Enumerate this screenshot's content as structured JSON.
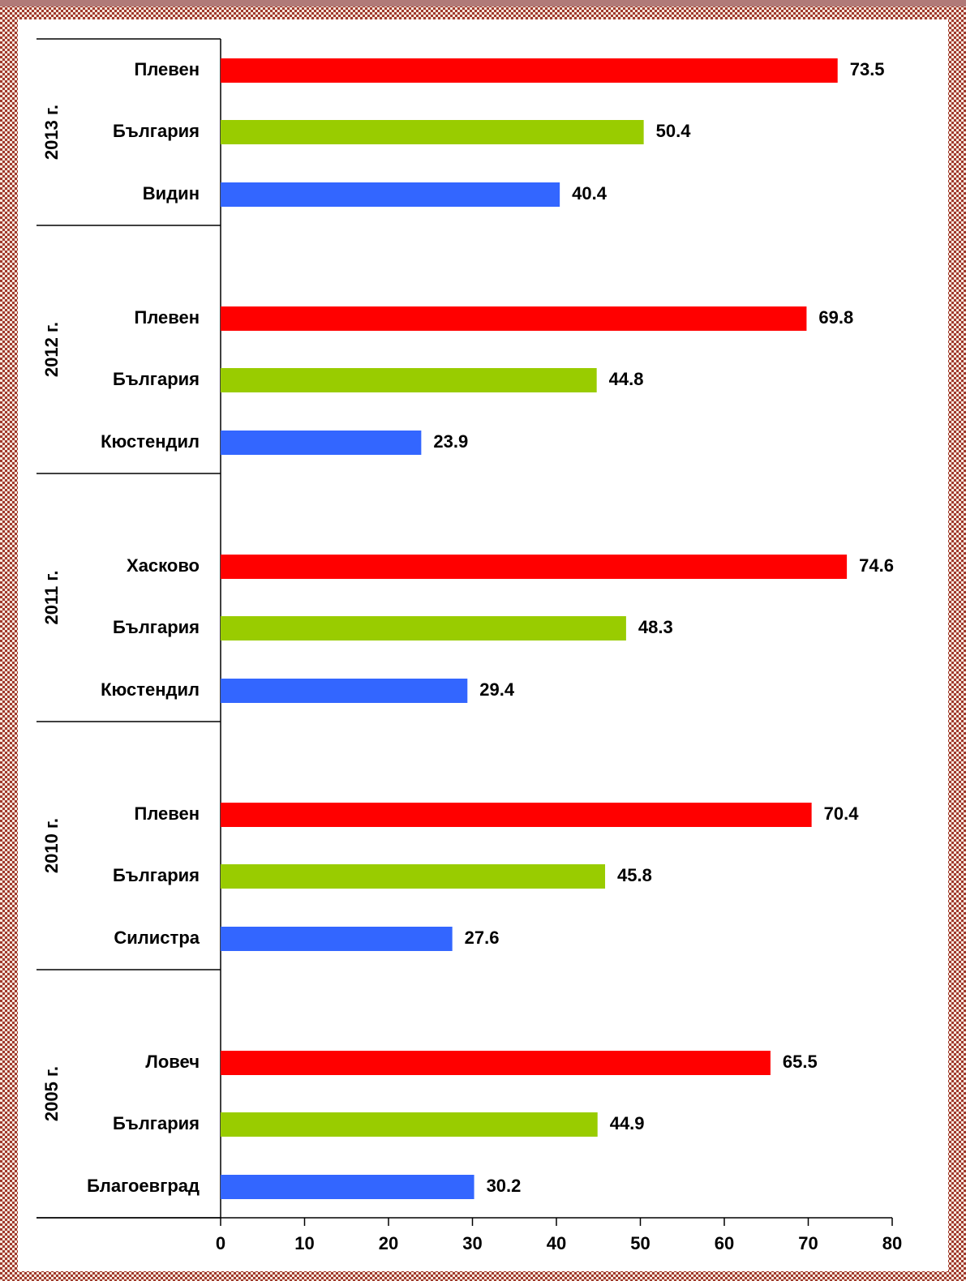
{
  "chart_data": {
    "type": "bar",
    "orientation": "horizontal",
    "groups": [
      {
        "name": "2013 г.",
        "categories": [
          "Плевен",
          "България",
          "Видин"
        ],
        "values": [
          73.5,
          50.4,
          40.4
        ]
      },
      {
        "name": "2012 г.",
        "categories": [
          "Плевен",
          "България",
          "Кюстендил"
        ],
        "values": [
          69.8,
          44.8,
          23.9
        ]
      },
      {
        "name": "2011 г.",
        "categories": [
          "Хасково",
          "България",
          "Кюстендил"
        ],
        "values": [
          74.6,
          48.3,
          29.4
        ]
      },
      {
        "name": "2010 г.",
        "categories": [
          "Плевен",
          "България",
          "Силистра"
        ],
        "values": [
          70.4,
          45.8,
          27.6
        ]
      },
      {
        "name": "2005 г.",
        "categories": [
          "Ловеч",
          "България",
          "Благоевград"
        ],
        "values": [
          65.5,
          44.9,
          30.2
        ]
      }
    ],
    "colors": [
      "#ff0000",
      "#99cc00",
      "#3366ff"
    ],
    "xlim": [
      0,
      80
    ],
    "xticks": [
      0,
      10,
      20,
      30,
      40,
      50,
      60,
      70,
      80
    ]
  }
}
